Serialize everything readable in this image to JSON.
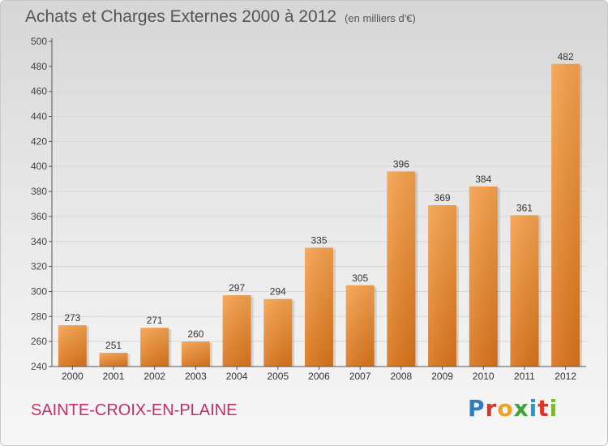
{
  "header": {
    "title": "Achats et Charges Externes 2000 à 2012",
    "subtitle": "(en milliers d'€)"
  },
  "footer": {
    "commune": "SAINTE-CROIX-EN-PLAINE",
    "logo": "Proxiti"
  },
  "colors": {
    "bar_top": "#f6a24e",
    "bar_bottom": "#d9741b",
    "axis": "#555555",
    "grid": "#d8d8d8",
    "commune": "#c0306a"
  },
  "chart_data": {
    "type": "bar",
    "title": "Achats et Charges Externes 2000 à 2012",
    "subtitle": "(en milliers d'€)",
    "categories": [
      "2000",
      "2001",
      "2002",
      "2003",
      "2004",
      "2005",
      "2006",
      "2007",
      "2008",
      "2009",
      "2010",
      "2011",
      "2012"
    ],
    "values": [
      273,
      251,
      271,
      260,
      297,
      294,
      335,
      305,
      396,
      369,
      384,
      361,
      482
    ],
    "ylim": [
      240,
      500
    ],
    "ytick_step": 20,
    "grid": true,
    "legend": "none"
  }
}
